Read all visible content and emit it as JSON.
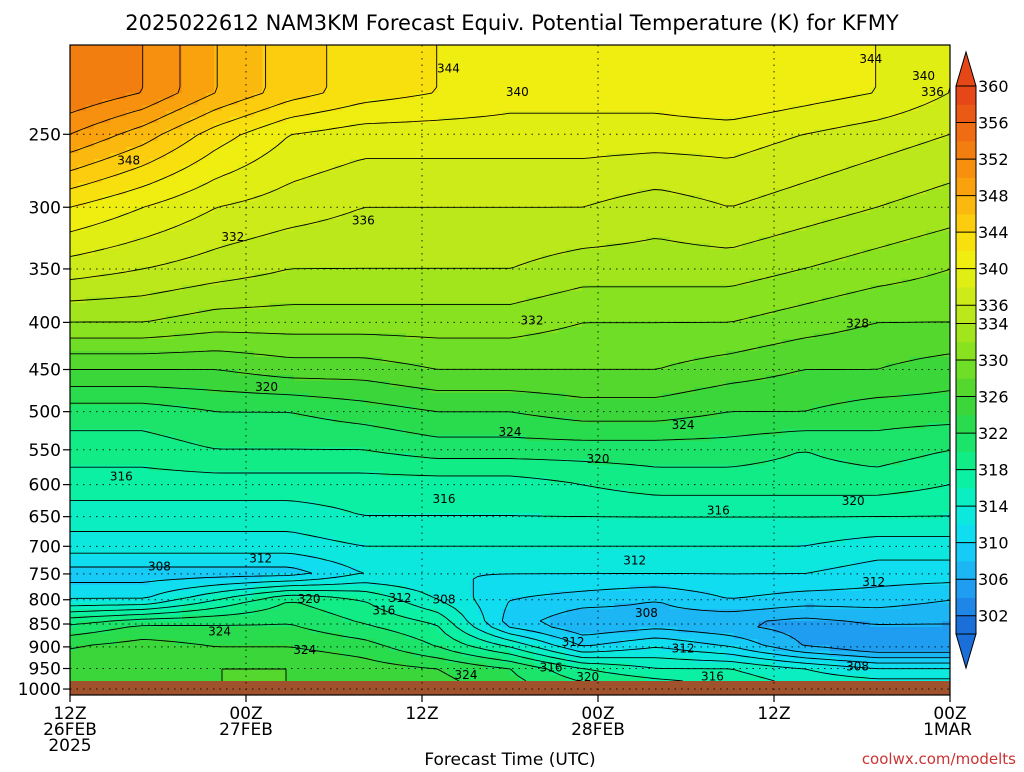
{
  "chart_data": {
    "type": "heatmap",
    "title": "2025022612 NAM3KM Forecast Equiv. Potential Temperature (K) for KFMY",
    "xlabel": "Forecast Time (UTC)",
    "ylabel": "",
    "x_ticks": [
      {
        "hour": 0,
        "lines": [
          "12Z",
          "26FEB",
          "2025"
        ]
      },
      {
        "hour": 12,
        "lines": [
          "00Z",
          "27FEB"
        ]
      },
      {
        "hour": 24,
        "lines": [
          "12Z"
        ]
      },
      {
        "hour": 36,
        "lines": [
          "00Z",
          "28FEB"
        ]
      },
      {
        "hour": 48,
        "lines": [
          "12Z"
        ]
      },
      {
        "hour": 60,
        "lines": [
          "00Z",
          "1MAR"
        ]
      }
    ],
    "xlim": [
      0,
      60
    ],
    "y_ticks": [
      250,
      300,
      350,
      400,
      450,
      500,
      550,
      600,
      650,
      700,
      750,
      800,
      850,
      900,
      950,
      1000
    ],
    "ylim": [
      200,
      1015
    ],
    "y_scale": "log",
    "y_inverted": true,
    "grid": true,
    "colorbar": {
      "levels": [
        300,
        302,
        304,
        306,
        308,
        310,
        312,
        314,
        316,
        318,
        320,
        322,
        324,
        326,
        328,
        330,
        332,
        334,
        336,
        338,
        340,
        342,
        344,
        346,
        348,
        350,
        352,
        354,
        356,
        358,
        360
      ],
      "labels": [
        360,
        356,
        352,
        348,
        344,
        340,
        336,
        334,
        330,
        326,
        322,
        318,
        314,
        310,
        306,
        302
      ],
      "colors": [
        "#1a6fd8",
        "#1e86e6",
        "#1f9df0",
        "#1cb6f5",
        "#16cbf5",
        "#10ddf0",
        "#0ce8de",
        "#0aeec2",
        "#0cf0a4",
        "#12ec86",
        "#1ce46a",
        "#28dc4e",
        "#3bd63a",
        "#55d82e",
        "#6ede26",
        "#88e220",
        "#a2e51c",
        "#bae81a",
        "#cdeb18",
        "#e0ee14",
        "#f0ee10",
        "#f8e00e",
        "#fbcd0e",
        "#fbb80e",
        "#f9a20e",
        "#f6900e",
        "#f37e10",
        "#ef6c12",
        "#ea5a14",
        "#e54816"
      ]
    },
    "series": [
      {
        "pressure": 225,
        "theta_e": [
          354,
          352,
          348,
          345,
          343,
          342,
          341,
          341,
          341,
          342,
          341,
          340,
          338
        ]
      },
      {
        "pressure": 250,
        "theta_e": [
          350,
          347,
          343,
          340,
          339,
          339,
          339,
          339,
          339,
          339,
          338,
          337,
          336
        ]
      },
      {
        "pressure": 300,
        "theta_e": [
          342,
          340,
          338,
          337,
          336,
          336,
          336,
          336,
          335,
          336,
          335,
          334,
          333
        ]
      },
      {
        "pressure": 350,
        "theta_e": [
          337,
          336,
          335,
          334,
          334,
          334,
          334,
          333,
          333,
          333,
          332,
          331,
          330
        ]
      },
      {
        "pressure": 400,
        "theta_e": [
          332,
          332,
          331,
          331,
          331,
          331,
          331,
          330,
          330,
          330,
          329,
          328,
          328
        ]
      },
      {
        "pressure": 450,
        "theta_e": [
          326,
          326,
          326,
          327,
          327,
          328,
          328,
          328,
          328,
          327,
          326,
          326,
          325
        ]
      },
      {
        "pressure": 500,
        "theta_e": [
          321,
          321,
          322,
          322,
          323,
          324,
          324,
          325,
          325,
          324,
          324,
          323,
          323
        ]
      },
      {
        "pressure": 550,
        "theta_e": [
          319,
          319,
          320,
          320,
          320,
          321,
          321,
          321,
          321,
          321,
          320,
          321,
          320
        ]
      },
      {
        "pressure": 600,
        "theta_e": [
          317,
          317,
          317,
          317,
          317,
          317,
          317,
          318,
          319,
          319,
          319,
          319,
          318
        ]
      },
      {
        "pressure": 650,
        "theta_e": [
          315,
          315,
          315,
          315,
          316,
          316,
          316,
          316,
          316,
          316,
          316,
          316,
          316
        ]
      },
      {
        "pressure": 700,
        "theta_e": [
          313,
          313,
          313,
          313,
          314,
          314,
          314,
          314,
          314,
          314,
          314,
          313,
          313
        ]
      },
      {
        "pressure": 750,
        "theta_e": [
          309,
          309,
          309,
          309,
          312,
          312,
          312,
          312,
          312,
          312,
          312,
          311,
          311
        ]
      },
      {
        "pressure": 800,
        "theta_e": [
          312,
          312,
          316,
          320,
          318,
          314,
          310,
          309,
          308,
          310,
          309,
          309,
          308
        ]
      },
      {
        "pressure": 850,
        "theta_e": [
          320,
          322,
          322,
          322,
          320,
          318,
          309,
          306,
          307,
          306,
          305,
          306,
          306
        ]
      },
      {
        "pressure": 900,
        "theta_e": [
          324,
          325,
          324,
          324,
          323,
          320,
          316,
          310,
          312,
          310,
          306,
          304,
          304
        ]
      },
      {
        "pressure": 950,
        "theta_e": [
          325,
          326,
          326,
          326,
          325,
          324,
          322,
          318,
          316,
          316,
          314,
          312,
          312
        ]
      },
      {
        "pressure": 1000,
        "theta_e": [
          324,
          325,
          326,
          326,
          326,
          325,
          323,
          321,
          320,
          318,
          316,
          316,
          316
        ]
      }
    ],
    "hours": [
      0,
      5,
      10,
      15,
      20,
      25,
      30,
      35,
      40,
      45,
      50,
      55,
      60
    ],
    "contour_labels": [
      {
        "text": "344",
        "hour": 25.8,
        "pressure": 212
      },
      {
        "text": "344",
        "hour": 54.6,
        "pressure": 207
      },
      {
        "text": "340",
        "hour": 58.2,
        "pressure": 216
      },
      {
        "text": "340",
        "hour": 30.5,
        "pressure": 225
      },
      {
        "text": "336",
        "hour": 58.8,
        "pressure": 225
      },
      {
        "text": "348",
        "hour": 4.0,
        "pressure": 267
      },
      {
        "text": "336",
        "hour": 20.0,
        "pressure": 310
      },
      {
        "text": "332",
        "hour": 11.1,
        "pressure": 323
      },
      {
        "text": "332",
        "hour": 31.5,
        "pressure": 398
      },
      {
        "text": "328",
        "hour": 53.7,
        "pressure": 401
      },
      {
        "text": "320",
        "hour": 13.4,
        "pressure": 470
      },
      {
        "text": "324",
        "hour": 30.0,
        "pressure": 526
      },
      {
        "text": "324",
        "hour": 41.8,
        "pressure": 517
      },
      {
        "text": "320",
        "hour": 36.0,
        "pressure": 563
      },
      {
        "text": "316",
        "hour": 3.5,
        "pressure": 588
      },
      {
        "text": "316",
        "hour": 25.5,
        "pressure": 622
      },
      {
        "text": "316",
        "hour": 44.2,
        "pressure": 640
      },
      {
        "text": "320",
        "hour": 53.4,
        "pressure": 625
      },
      {
        "text": "308",
        "hour": 6.1,
        "pressure": 736
      },
      {
        "text": "312",
        "hour": 13.0,
        "pressure": 722
      },
      {
        "text": "312",
        "hour": 38.5,
        "pressure": 725
      },
      {
        "text": "312",
        "hour": 54.8,
        "pressure": 765
      },
      {
        "text": "312",
        "hour": 22.5,
        "pressure": 797
      },
      {
        "text": "308",
        "hour": 25.5,
        "pressure": 800
      },
      {
        "text": "316",
        "hour": 21.4,
        "pressure": 822
      },
      {
        "text": "320",
        "hour": 16.3,
        "pressure": 799
      },
      {
        "text": "324",
        "hour": 10.2,
        "pressure": 866
      },
      {
        "text": "308",
        "hour": 39.3,
        "pressure": 827
      },
      {
        "text": "312",
        "hour": 34.3,
        "pressure": 889
      },
      {
        "text": "312",
        "hour": 41.8,
        "pressure": 904
      },
      {
        "text": "324",
        "hour": 16.0,
        "pressure": 907
      },
      {
        "text": "316",
        "hour": 32.8,
        "pressure": 947
      },
      {
        "text": "320",
        "hour": 35.3,
        "pressure": 970
      },
      {
        "text": "324",
        "hour": 27.0,
        "pressure": 966
      },
      {
        "text": "316",
        "hour": 43.8,
        "pressure": 969
      },
      {
        "text": "308",
        "hour": 53.7,
        "pressure": 945
      }
    ]
  },
  "credit": "coolwx.com/modelts"
}
